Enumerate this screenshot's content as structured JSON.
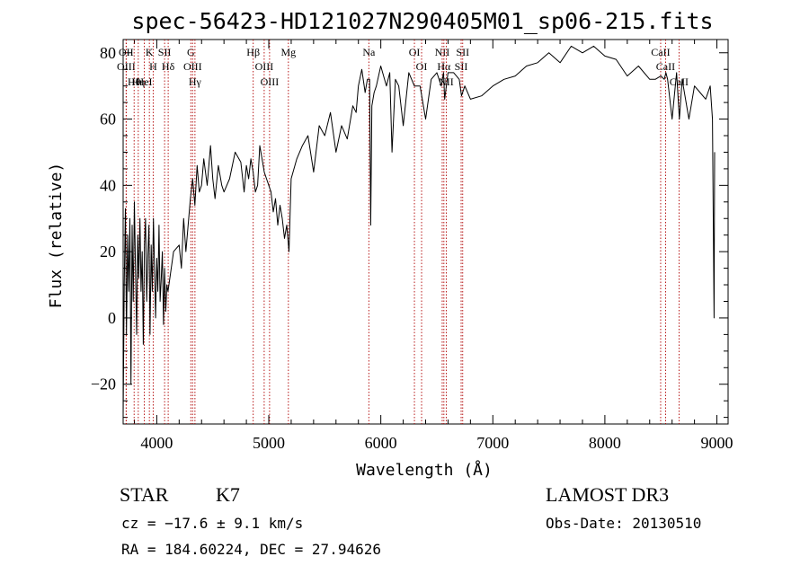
{
  "chart_data": {
    "type": "line",
    "title": "spec-56423-HD121027N290405M01_sp06-215.fits",
    "xlabel": "Wavelength (Å)",
    "ylabel": "Flux (relative)",
    "xlim": [
      3700,
      9100
    ],
    "ylim": [
      -32,
      84
    ],
    "xticks": [
      4000,
      5000,
      6000,
      7000,
      8000,
      9000
    ],
    "yticks": [
      -20,
      0,
      20,
      40,
      60,
      80
    ],
    "x_minor_step": 200,
    "y_minor_step": 5,
    "series": [
      {
        "name": "flux",
        "x": [
          3700,
          3710,
          3720,
          3730,
          3740,
          3750,
          3760,
          3770,
          3780,
          3790,
          3800,
          3810,
          3820,
          3830,
          3840,
          3850,
          3860,
          3870,
          3880,
          3890,
          3900,
          3910,
          3920,
          3930,
          3940,
          3950,
          3960,
          3970,
          3980,
          3990,
          4000,
          4010,
          4020,
          4030,
          4040,
          4050,
          4060,
          4070,
          4080,
          4090,
          4100,
          4150,
          4200,
          4220,
          4240,
          4260,
          4280,
          4300,
          4320,
          4340,
          4360,
          4380,
          4400,
          4420,
          4450,
          4480,
          4500,
          4520,
          4550,
          4580,
          4600,
          4650,
          4700,
          4750,
          4780,
          4800,
          4820,
          4840,
          4860,
          4880,
          4900,
          4920,
          4940,
          4960,
          4980,
          5000,
          5020,
          5040,
          5060,
          5080,
          5100,
          5120,
          5140,
          5160,
          5180,
          5200,
          5250,
          5300,
          5350,
          5400,
          5450,
          5500,
          5550,
          5600,
          5650,
          5700,
          5750,
          5780,
          5800,
          5830,
          5860,
          5880,
          5900,
          5910,
          5920,
          5940,
          5960,
          6000,
          6050,
          6080,
          6100,
          6130,
          6160,
          6200,
          6250,
          6300,
          6350,
          6400,
          6450,
          6500,
          6540,
          6560,
          6570,
          6600,
          6650,
          6700,
          6720,
          6750,
          6800,
          6900,
          7000,
          7100,
          7200,
          7300,
          7400,
          7500,
          7600,
          7700,
          7800,
          7900,
          8000,
          8100,
          8200,
          8300,
          8400,
          8450,
          8500,
          8530,
          8545,
          8560,
          8600,
          8640,
          8665,
          8690,
          8750,
          8800,
          8850,
          8900,
          8940,
          8960,
          8975,
          8980
        ],
        "values": [
          -30,
          10,
          33,
          -5,
          25,
          8,
          30,
          -20,
          28,
          5,
          35,
          15,
          -5,
          25,
          12,
          30,
          8,
          20,
          -8,
          22,
          30,
          5,
          18,
          28,
          -5,
          22,
          8,
          30,
          15,
          0,
          18,
          8,
          28,
          5,
          12,
          20,
          -2,
          15,
          2,
          10,
          8,
          20,
          22,
          15,
          30,
          20,
          28,
          36,
          42,
          34,
          46,
          38,
          40,
          48,
          40,
          52,
          42,
          36,
          46,
          40,
          38,
          42,
          50,
          47,
          38,
          46,
          42,
          48,
          44,
          38,
          40,
          52,
          48,
          44,
          42,
          40,
          38,
          32,
          36,
          28,
          34,
          30,
          24,
          28,
          20,
          42,
          48,
          52,
          55,
          44,
          58,
          55,
          62,
          50,
          58,
          54,
          64,
          62,
          70,
          75,
          68,
          72,
          72,
          28,
          64,
          68,
          70,
          76,
          70,
          74,
          50,
          72,
          70,
          58,
          74,
          70,
          70,
          60,
          72,
          74,
          70,
          74,
          66,
          74,
          74,
          72,
          67,
          70,
          66,
          67,
          70,
          72,
          73,
          76,
          77,
          80,
          77,
          82,
          80,
          82,
          79,
          78,
          73,
          76,
          72,
          72,
          73,
          72,
          74,
          72,
          60,
          74,
          60,
          72,
          60,
          70,
          68,
          66,
          70,
          60,
          0,
          50
        ]
      }
    ],
    "line_annotations": [
      {
        "label": "Hθ",
        "wavelength": 3798
      },
      {
        "label": "OII",
        "wavelength": 3727
      },
      {
        "label": "OIII",
        "wavelength": 3727
      },
      {
        "label": "Hη",
        "wavelength": 3835
      },
      {
        "label": "HeI",
        "wavelength": 3889
      },
      {
        "label": "K",
        "wavelength": 3934
      },
      {
        "label": "H",
        "wavelength": 3968
      },
      {
        "label": "SII",
        "wavelength": 4070
      },
      {
        "label": "Hδ",
        "wavelength": 4102
      },
      {
        "label": "OIII",
        "wavelength": 4320
      },
      {
        "label": "Hγ",
        "wavelength": 4341
      },
      {
        "label": "G",
        "wavelength": 4304
      },
      {
        "label": "Hβ",
        "wavelength": 4861
      },
      {
        "label": "OIII",
        "wavelength": 4959
      },
      {
        "label": "OIII",
        "wavelength": 5007
      },
      {
        "label": "Mg",
        "wavelength": 5175
      },
      {
        "label": "Na",
        "wavelength": 5893
      },
      {
        "label": "OI",
        "wavelength": 6300
      },
      {
        "label": "OI",
        "wavelength": 6364
      },
      {
        "label": "Hα",
        "wavelength": 6563
      },
      {
        "label": "NII",
        "wavelength": 6548
      },
      {
        "label": "NII",
        "wavelength": 6584
      },
      {
        "label": "SII",
        "wavelength": 6717
      },
      {
        "label": "SII",
        "wavelength": 6731
      },
      {
        "label": "CaII",
        "wavelength": 8498
      },
      {
        "label": "CaII",
        "wavelength": 8542
      },
      {
        "label": "CaII",
        "wavelength": 8662
      }
    ]
  },
  "info": {
    "object_class": "STAR",
    "subclass": "K7",
    "survey": "LAMOST DR3",
    "redshift_text": "cz = −17.6 ± 9.1 km/s",
    "obs_date_text": "Obs-Date: 20130510",
    "coords_text": "RA = 184.60224, DEC =  27.94626"
  },
  "colors": {
    "spectrum": "#000000",
    "line_markers": "#b00000",
    "axes": "#000000",
    "background": "#ffffff"
  }
}
